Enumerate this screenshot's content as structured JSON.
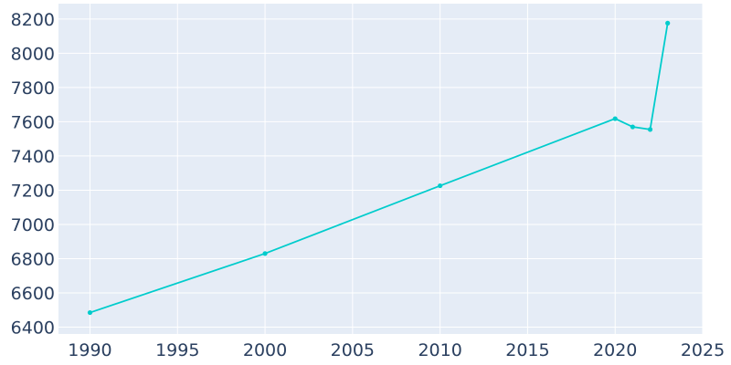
{
  "chart_data": {
    "type": "line",
    "title": "",
    "xlabel": "",
    "ylabel": "",
    "x": [
      1990,
      2000,
      2010,
      2020,
      2021,
      2022,
      2023
    ],
    "series": [
      {
        "values": [
          6485,
          6830,
          7226,
          7618,
          7570,
          7555,
          8176
        ]
      }
    ],
    "xlim": [
      1988.2,
      2025
    ],
    "ylim": [
      6360,
      8290
    ],
    "xticks": [
      1990,
      1995,
      2000,
      2005,
      2010,
      2015,
      2020,
      2025
    ],
    "yticks": [
      6400,
      6600,
      6800,
      7000,
      7200,
      7400,
      7600,
      7800,
      8000,
      8200
    ],
    "grid": true,
    "legend": "none",
    "colors": {
      "line": "#00cccc",
      "plot_bg": "#e5ecf6",
      "grid": "#ffffff",
      "tick_text": "#2a3f5f"
    }
  }
}
